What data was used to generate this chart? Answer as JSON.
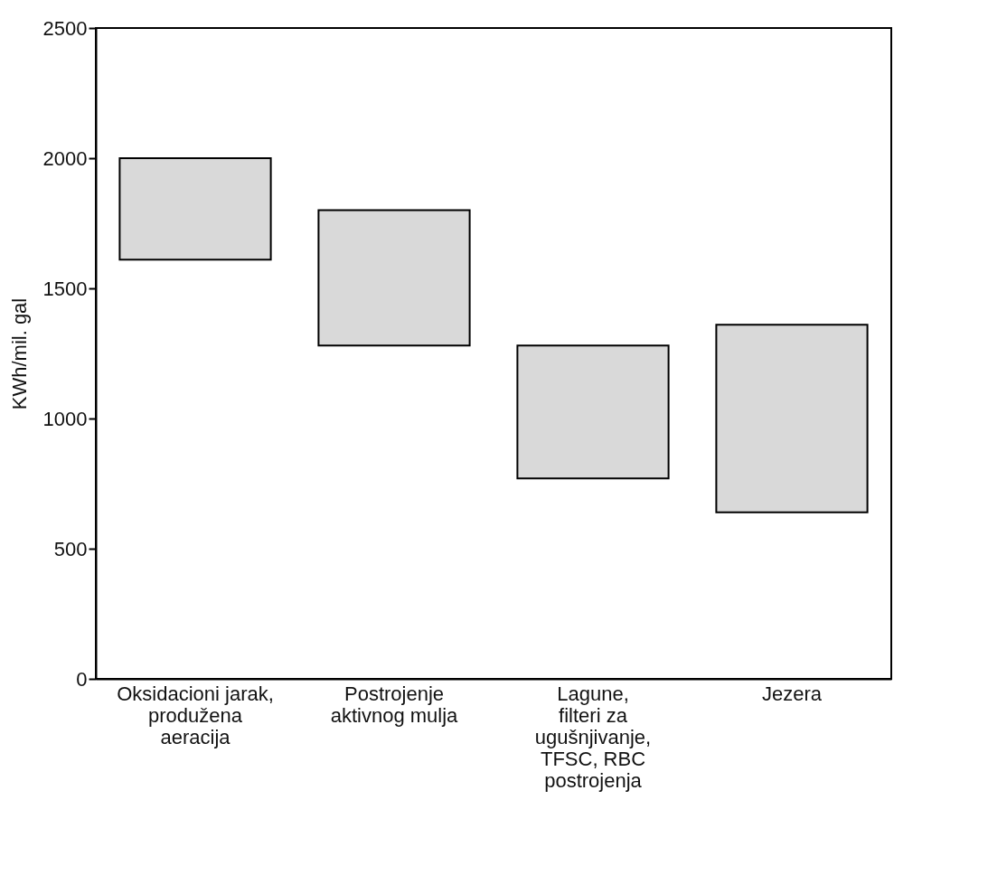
{
  "chart_data": {
    "type": "bar",
    "ylabel": "KWh/mil. gal",
    "categories": [
      "Oksidacioni jarak,\nprodužena\naeracija",
      "Postrojenje\naktivnog mulja",
      "Lagune,\nfilteri za\nugušnjivanje,\nTFSC, RBC\npostrojenja",
      "Jezera"
    ],
    "base": [
      1610,
      1280,
      770,
      640
    ],
    "values": [
      390,
      520,
      510,
      720
    ],
    "color": "#d9d9d9",
    "ylim": [
      0,
      2500
    ],
    "yticks": [
      0,
      500,
      1000,
      1500,
      2000,
      2500
    ],
    "grid": false
  }
}
